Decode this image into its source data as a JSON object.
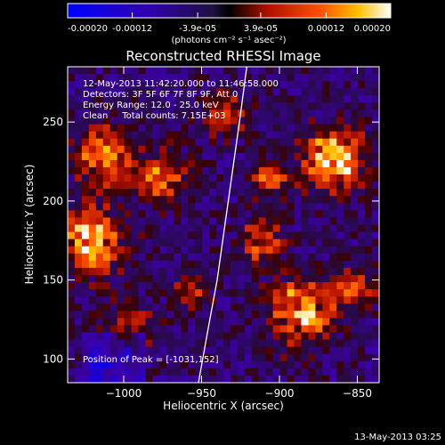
{
  "colorbar": {
    "tick_labels": [
      "-0.00020",
      "-0.00012",
      "-3.9e-05",
      "3.9e-05",
      "0.00012",
      "0.00020"
    ],
    "tick_values": [
      -0.0002,
      -0.00012,
      -3.9e-05,
      3.9e-05,
      0.00012,
      0.0002
    ],
    "range": [
      -0.0002,
      0.0002
    ],
    "units": "(photons cm⁻² s⁻¹ asec⁻²)"
  },
  "title": "Reconstructed RHESSI Image",
  "info": {
    "line1": "12-May-2013 11:42:20.000 to 11:46:58.000",
    "line2": "Detectors: 3F 5F 6F 7F 8F 9F, Att 0",
    "line3": "Energy Range: 12.0 - 25.0 keV",
    "line4": "Clean     Total counts: 7.15E+03"
  },
  "peak_label": "Position of Peak = [-1031,152]",
  "axes": {
    "xlabel": "Heliocentric X (arcsec)",
    "ylabel": "Heliocentric Y (arcsec)",
    "xlim": [
      -1036,
      -836
    ],
    "ylim": [
      85,
      285
    ],
    "xticks": [
      -1000,
      -950,
      -900,
      -850
    ],
    "xtick_labels": [
      "−1000",
      "−950",
      "−900",
      "−850"
    ],
    "yticks": [
      100,
      150,
      200,
      250
    ],
    "ytick_labels": [
      "100",
      "150",
      "200",
      "250"
    ]
  },
  "limb": {
    "x": [
      -952,
      -946,
      -940,
      -935,
      -930,
      -925,
      -921
    ],
    "y": [
      85,
      118,
      150,
      185,
      220,
      255,
      285
    ]
  },
  "timestamp": "13-May-2013 03:25"
}
